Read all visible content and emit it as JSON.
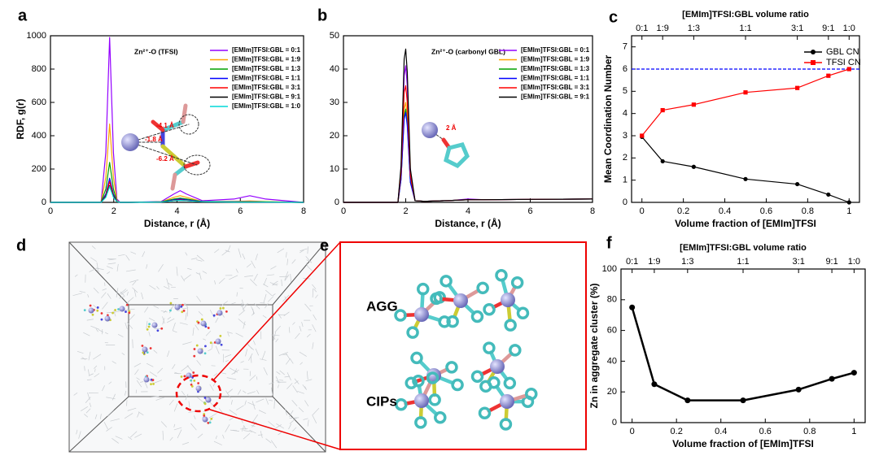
{
  "chart_data": [
    {
      "panel": "a",
      "type": "line",
      "annotation": "Zn²⁺-O (TFSI)",
      "xlabel": "Distance, r (Å)",
      "ylabel": "RDF, g(r)",
      "inset_labels": [
        "-4.1 Å",
        "-1.8 Å",
        "-6.2 Å"
      ],
      "xlim": [
        0,
        8
      ],
      "ylim": [
        0,
        1000
      ],
      "xticks": [
        0,
        2,
        4,
        6,
        8
      ],
      "yticks": [
        0,
        200,
        400,
        600,
        800,
        1000
      ],
      "legend": "upper right",
      "x": [
        0,
        1.6,
        1.75,
        1.87,
        1.99,
        2.1,
        2.2,
        2.5,
        3.5,
        3.9,
        4.1,
        4.3,
        4.8,
        5.8,
        6.3,
        6.8,
        8
      ],
      "series": [
        {
          "name": "[EMIm]TFSI:GBL = 0:1",
          "color": "#9400ff",
          "values": [
            0,
            0,
            300,
            990,
            300,
            20,
            0,
            0,
            5,
            50,
            70,
            50,
            10,
            20,
            40,
            20,
            0
          ]
        },
        {
          "name": "[EMIm]TFSI:GBL = 1:9",
          "color": "#ffa500",
          "values": [
            0,
            0,
            150,
            470,
            150,
            10,
            0,
            0,
            3,
            30,
            40,
            30,
            5,
            5,
            8,
            5,
            0
          ]
        },
        {
          "name": "[EMIm]TFSI:GBL = 1:3",
          "color": "#00a000",
          "values": [
            0,
            0,
            80,
            240,
            80,
            5,
            0,
            0,
            3,
            20,
            25,
            20,
            5,
            5,
            5,
            3,
            0
          ]
        },
        {
          "name": "[EMIm]TFSI:GBL = 1:1",
          "color": "#0000ff",
          "values": [
            0,
            0,
            50,
            145,
            50,
            5,
            0,
            0,
            2,
            15,
            20,
            15,
            5,
            3,
            3,
            2,
            0
          ]
        },
        {
          "name": "[EMIm]TFSI:GBL = 3:1",
          "color": "#ff0000",
          "values": [
            0,
            0,
            40,
            125,
            40,
            5,
            0,
            0,
            2,
            12,
            15,
            12,
            4,
            3,
            3,
            2,
            0
          ]
        },
        {
          "name": "[EMIm]TFSI:GBL = 9:1",
          "color": "#000000",
          "values": [
            0,
            0,
            35,
            100,
            35,
            5,
            0,
            0,
            2,
            10,
            12,
            10,
            4,
            2,
            2,
            2,
            0
          ]
        },
        {
          "name": "[EMIm]TFSI:GBL = 1:0",
          "color": "#00d8d8",
          "values": [
            0,
            0,
            30,
            95,
            30,
            5,
            0,
            0,
            2,
            10,
            12,
            10,
            4,
            2,
            2,
            2,
            0
          ]
        }
      ]
    },
    {
      "panel": "b",
      "type": "line",
      "annotation": "Zn²⁺-O (carbonyl GBL)",
      "xlabel": "Distance, r (Å)",
      "inset_labels": [
        "2 Å"
      ],
      "xlim": [
        0,
        8
      ],
      "ylim": [
        0,
        50
      ],
      "xticks": [
        0,
        2,
        4,
        6,
        8
      ],
      "yticks": [
        0,
        10,
        20,
        30,
        40,
        50
      ],
      "legend": "upper right",
      "x": [
        0,
        1.75,
        1.85,
        1.95,
        2.0,
        2.05,
        2.15,
        2.3,
        2.6,
        3.5,
        4,
        4.5,
        6,
        8
      ],
      "series": [
        {
          "name": "[EMIm]TFSI:GBL = 0:1",
          "color": "#9400ff",
          "values": [
            0,
            0,
            10,
            38,
            41,
            35,
            8,
            0.5,
            0.3,
            0.6,
            1,
            0.8,
            0.9,
            1
          ]
        },
        {
          "name": "[EMIm]TFSI:GBL = 1:9",
          "color": "#ffa500",
          "values": [
            0,
            0,
            8,
            28,
            30,
            26,
            7,
            0.5,
            0.3,
            0.6,
            0.8,
            0.8,
            0.9,
            1
          ]
        },
        {
          "name": "[EMIm]TFSI:GBL = 1:3",
          "color": "#00a000",
          "values": [
            0,
            0,
            7,
            26,
            28,
            24,
            6,
            0.5,
            0.3,
            0.6,
            0.8,
            0.8,
            0.9,
            1
          ]
        },
        {
          "name": "[EMIm]TFSI:GBL = 1:1",
          "color": "#0000ff",
          "values": [
            0,
            0,
            7,
            25,
            27,
            23,
            6,
            0.5,
            0.3,
            0.6,
            0.8,
            0.8,
            0.9,
            1
          ]
        },
        {
          "name": "[EMIm]TFSI:GBL = 3:1",
          "color": "#ff0000",
          "values": [
            0,
            0,
            9,
            33,
            35,
            30,
            8,
            0.5,
            0.3,
            0.6,
            0.8,
            0.8,
            0.9,
            1
          ]
        },
        {
          "name": "[EMIm]TFSI:GBL = 9:1",
          "color": "#000000",
          "values": [
            0,
            0,
            11,
            43,
            46,
            39,
            10,
            0.5,
            0.3,
            0.6,
            0.8,
            0.8,
            0.9,
            1
          ]
        }
      ]
    },
    {
      "panel": "c",
      "type": "line",
      "xlabel": "Volume fraction of [EMIm]TFSI",
      "ylabel": "Mean Coordination Number",
      "x2label": "[EMIm]TFSI:GBL volume ratio",
      "xlim": [
        -0.05,
        1.05
      ],
      "ylim": [
        0,
        7.5
      ],
      "xticks": [
        0,
        0.2,
        0.4,
        0.6,
        0.8,
        1
      ],
      "yticks": [
        0,
        1,
        2,
        3,
        4,
        5,
        6,
        7
      ],
      "x2ticks": [
        {
          "value": 0,
          "label": "0:1"
        },
        {
          "value": 0.1,
          "label": "1:9"
        },
        {
          "value": 0.25,
          "label": "1:3"
        },
        {
          "value": 0.5,
          "label": "1:1"
        },
        {
          "value": 0.75,
          "label": "3:1"
        },
        {
          "value": 0.9,
          "label": "9:1"
        },
        {
          "value": 1,
          "label": "1:0"
        }
      ],
      "reference_line": {
        "value": 6,
        "color": "#0000ff"
      },
      "legend": "upper right",
      "x": [
        0,
        0.1,
        0.25,
        0.5,
        0.75,
        0.9,
        1
      ],
      "series": [
        {
          "name": "GBL CN",
          "color": "#000000",
          "marker": "circle",
          "values": [
            2.95,
            1.85,
            1.6,
            1.05,
            0.82,
            0.35,
            0
          ]
        },
        {
          "name": "TFSI CN",
          "color": "#ff0000",
          "marker": "square",
          "values": [
            3.0,
            4.15,
            4.4,
            4.95,
            5.15,
            5.7,
            6.0
          ]
        }
      ]
    },
    {
      "panel": "f",
      "type": "line",
      "xlabel": "Volume fraction of [EMIm]TFSI",
      "ylabel": "Zn in aggregate cluster (%)",
      "x2label": "[EMIm]TFSI:GBL volume ratio",
      "xlim": [
        -0.05,
        1.05
      ],
      "ylim": [
        0,
        100
      ],
      "xticks": [
        0,
        0.2,
        0.4,
        0.6,
        0.8,
        1
      ],
      "yticks": [
        0,
        20,
        40,
        60,
        80,
        100
      ],
      "x2ticks": [
        {
          "value": 0,
          "label": "0:1"
        },
        {
          "value": 0.1,
          "label": "1:9"
        },
        {
          "value": 0.25,
          "label": "1:3"
        },
        {
          "value": 0.5,
          "label": "1:1"
        },
        {
          "value": 0.75,
          "label": "3:1"
        },
        {
          "value": 0.9,
          "label": "9:1"
        },
        {
          "value": 1,
          "label": "1:0"
        }
      ],
      "x": [
        0,
        0.1,
        0.25,
        0.5,
        0.75,
        0.9,
        1
      ],
      "series": [
        {
          "color": "#000000",
          "marker": "circle",
          "values": [
            75,
            25,
            14.5,
            14.5,
            21.5,
            28.5,
            32.5
          ]
        }
      ]
    }
  ],
  "figure_panels": [
    {
      "panel": "d"
    },
    {
      "panel": "e",
      "labels": [
        "AGG",
        "CIPs"
      ]
    }
  ]
}
